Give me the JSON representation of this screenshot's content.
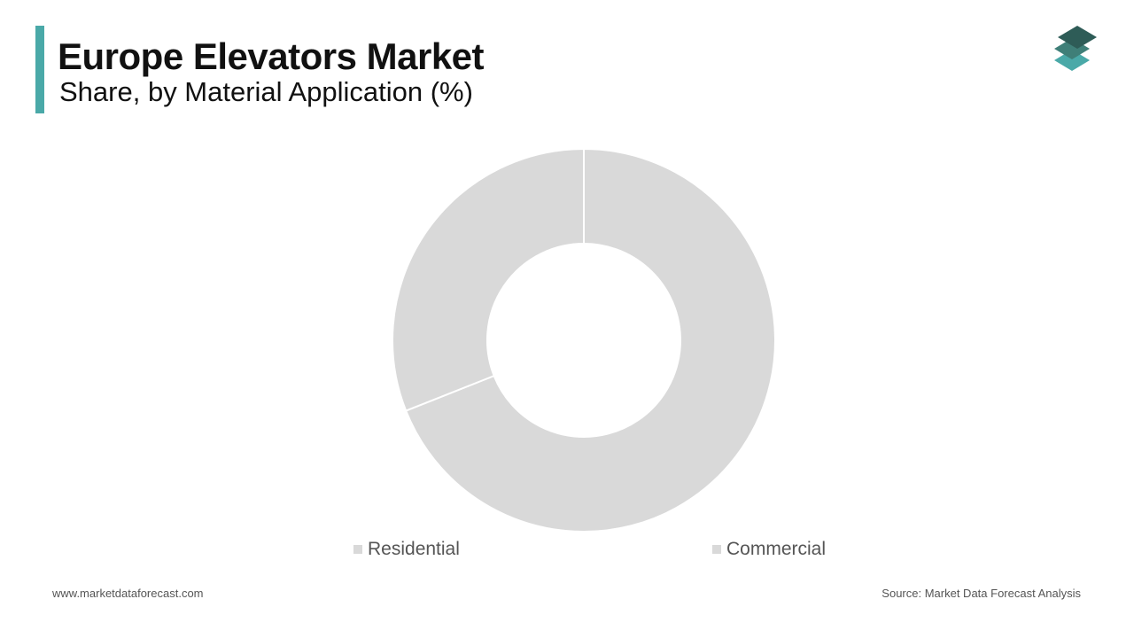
{
  "header": {
    "title": "Europe Elevators Market",
    "subtitle": "Share, by Material Application (%)",
    "accent_color": "#4aa9a8",
    "logo_icon": "stacked-layers-logo-icon"
  },
  "chart_data": {
    "type": "pie",
    "variant": "donut",
    "title": "",
    "categories": [
      "Commercial",
      "Residential"
    ],
    "values": [
      69,
      31
    ],
    "unit": "%",
    "colors": [
      "#d9d9d9",
      "#d9d9d9"
    ],
    "legend": {
      "placement": "bottom",
      "entries": [
        "Residential",
        "Commercial"
      ]
    },
    "data_labels": false
  },
  "footer": {
    "website": "www.marketdataforecast.com",
    "source": "Source: Market Data Forecast Analysis"
  }
}
